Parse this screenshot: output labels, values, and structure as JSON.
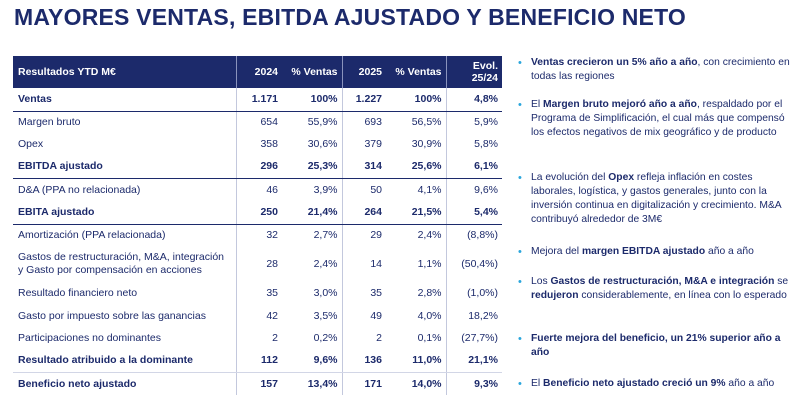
{
  "title": "MAYORES VENTAS, EBITDA AJUSTADO Y BENEFICIO NETO",
  "table": {
    "headers": [
      "Resultados YTD M€",
      "2024",
      "% Ventas",
      "2025",
      "% Ventas",
      "Evol.\n25/24"
    ],
    "rows": [
      {
        "cells": [
          "Ventas",
          "1.171",
          "100%",
          "1.227",
          "100%",
          "4,8%"
        ]
      },
      {
        "cells": [
          "Margen bruto",
          "654",
          "55,9%",
          "693",
          "56,5%",
          "5,9%"
        ]
      },
      {
        "cells": [
          "Opex",
          "358",
          "30,6%",
          "379",
          "30,9%",
          "5,8%"
        ]
      },
      {
        "cells": [
          "EBITDA ajustado",
          "296",
          "25,3%",
          "314",
          "25,6%",
          "6,1%"
        ]
      },
      {
        "cells": [
          "D&A (PPA no relacionada)",
          "46",
          "3,9%",
          "50",
          "4,1%",
          "9,6%"
        ]
      },
      {
        "cells": [
          "EBITA ajustado",
          "250",
          "21,4%",
          "264",
          "21,5%",
          "5,4%"
        ]
      },
      {
        "cells": [
          "Amortización (PPA relacionada)",
          "32",
          "2,7%",
          "29",
          "2,4%",
          "(8,8%)"
        ]
      },
      {
        "cells": [
          "Gastos de restructuración, M&A, integración y Gasto por compensación en acciones",
          "28",
          "2,4%",
          "14",
          "1,1%",
          "(50,4%)"
        ]
      },
      {
        "cells": [
          "Resultado financiero neto",
          "35",
          "3,0%",
          "35",
          "2,8%",
          "(1,0%)"
        ]
      },
      {
        "cells": [
          "Gasto por impuesto sobre las ganancias",
          "42",
          "3,5%",
          "49",
          "4,0%",
          "18,2%"
        ]
      },
      {
        "cells": [
          "Participaciones no dominantes",
          "2",
          "0,2%",
          "2",
          "0,1%",
          "(27,7%)"
        ]
      },
      {
        "cells": [
          "Resultado atribuido a la dominante",
          "112",
          "9,6%",
          "136",
          "11,0%",
          "21,1%"
        ]
      },
      {
        "cells": [
          "Beneficio neto ajustado",
          "157",
          "13,4%",
          "171",
          "14,0%",
          "9,3%"
        ]
      }
    ]
  },
  "bullets": [
    [
      {
        "t": "Ventas crecieron un 5% año a año",
        "b": true
      },
      {
        "t": ", con crecimiento en todas las regiones",
        "b": false
      }
    ],
    [
      {
        "t": "El ",
        "b": false
      },
      {
        "t": "Margen bruto mejoró año a año",
        "b": true
      },
      {
        "t": ", respaldado por el Programa de Simplificación, el cual más que compensó los efectos negativos de mix geográfico y de producto",
        "b": false
      }
    ],
    [
      {
        "t": "La evolución del ",
        "b": false
      },
      {
        "t": "Opex",
        "b": true
      },
      {
        "t": " refleja inflación en costes laborales, logística, y gastos generales, junto con la inversión continua en digitalización y crecimiento. M&A contribuyó alrededor de 3M€",
        "b": false
      }
    ],
    [
      {
        "t": "Mejora del ",
        "b": false
      },
      {
        "t": "margen EBITDA ajustado",
        "b": true
      },
      {
        "t": " año a año",
        "b": false
      }
    ],
    [
      {
        "t": "Los ",
        "b": false
      },
      {
        "t": "Gastos de restructuración, M&A e integración",
        "b": true
      },
      {
        "t": " se ",
        "b": false
      },
      {
        "t": "redujeron",
        "b": true
      },
      {
        "t": " considerablemente, en línea con lo esperado",
        "b": false
      }
    ],
    [
      {
        "t": "Fuerte mejora del beneficio, un 21% superior año a año",
        "b": true
      }
    ],
    [
      {
        "t": "El ",
        "b": false
      },
      {
        "t": "Beneficio neto ajustado creció un 9%",
        "b": true
      },
      {
        "t": " año a año",
        "b": false
      }
    ]
  ]
}
